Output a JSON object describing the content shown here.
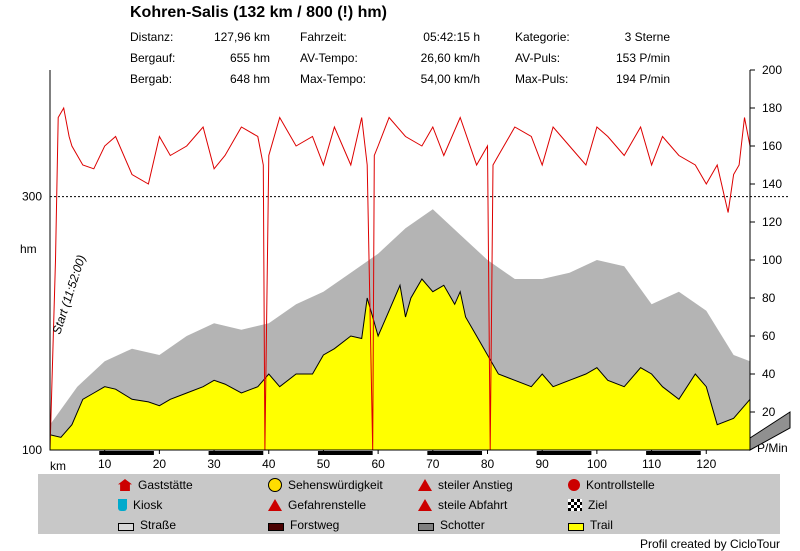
{
  "title": "Kohren-Salis (132 km / 800 (!) hm)",
  "stats": [
    {
      "label": "Distanz:",
      "value": "127,96 km"
    },
    {
      "label": "Bergauf:",
      "value": "655 hm"
    },
    {
      "label": "Bergab:",
      "value": "648 hm"
    },
    {
      "label": "Fahrzeit:",
      "value": "05:42:15 h"
    },
    {
      "label": "AV-Tempo:",
      "value": "26,60 km/h"
    },
    {
      "label": "Max-Tempo:",
      "value": "54,00 km/h"
    },
    {
      "label": "Kategorie:",
      "value": "3 Sterne"
    },
    {
      "label": "AV-Puls:",
      "value": "153 P/min"
    },
    {
      "label": "Max-Puls:",
      "value": "194 P/min"
    }
  ],
  "axis": {
    "left_unit": "hm",
    "right_unit": "P/Min",
    "x_unit": "km",
    "left_ticks": [
      "100",
      "300"
    ],
    "right_ticks": [
      "20",
      "40",
      "60",
      "80",
      "100",
      "120",
      "140",
      "160",
      "180",
      "200"
    ],
    "x_ticks": [
      "10",
      "20",
      "30",
      "40",
      "50",
      "60",
      "70",
      "80",
      "90",
      "100",
      "110",
      "120"
    ]
  },
  "start_label": "Start (11:52:00)",
  "legend": [
    {
      "label": "Gaststätte",
      "icon": "house-icon",
      "color": "#cc0000"
    },
    {
      "label": "Sehenswürdigkeit",
      "icon": "smiley-icon",
      "color": "#ffdd00"
    },
    {
      "label": "steiler Anstieg",
      "icon": "steep-climb-icon",
      "color": "#cc0000"
    },
    {
      "label": "Kontrollstelle",
      "icon": "stop-sign-icon",
      "color": "#cc0000"
    },
    {
      "label": "Kiosk",
      "icon": "cup-icon",
      "color": "#00aacc"
    },
    {
      "label": "Gefahrenstelle",
      "icon": "warning-icon",
      "color": "#cc0000"
    },
    {
      "label": "steile Abfahrt",
      "icon": "steep-descent-icon",
      "color": "#cc0000"
    },
    {
      "label": "Ziel",
      "icon": "checkered-flag-icon",
      "color": "#000000"
    },
    {
      "label": "Straße",
      "icon": "road-swatch-icon",
      "color": "#d8d8d8"
    },
    {
      "label": "Forstweg",
      "icon": "forest-path-swatch-icon",
      "color": "#4a0000"
    },
    {
      "label": "Schotter",
      "icon": "gravel-swatch-icon",
      "color": "#808080"
    },
    {
      "label": "Trail",
      "icon": "trail-swatch-icon",
      "color": "#ffff00"
    }
  ],
  "credit": "Profil created by CicloTour",
  "chart_data": {
    "type": "area",
    "x_range_km": [
      0,
      128
    ],
    "elevation_range_hm": [
      100,
      400
    ],
    "pulse_range": [
      0,
      200
    ],
    "reference_line_hm": 300,
    "elevation": {
      "x": [
        0,
        2,
        4,
        6,
        8,
        10,
        12,
        15,
        18,
        20,
        22,
        25,
        28,
        30,
        32,
        35,
        38,
        40,
        42,
        45,
        48,
        50,
        52,
        55,
        57,
        58,
        59,
        60,
        62,
        64,
        65,
        66,
        68,
        70,
        72,
        74,
        75,
        76,
        78,
        80,
        82,
        85,
        88,
        90,
        92,
        95,
        98,
        100,
        102,
        105,
        108,
        110,
        112,
        115,
        118,
        120,
        122,
        125,
        128
      ],
      "y": [
        112,
        110,
        120,
        140,
        145,
        150,
        148,
        140,
        138,
        135,
        140,
        145,
        150,
        155,
        152,
        145,
        150,
        160,
        150,
        160,
        160,
        175,
        180,
        190,
        188,
        220,
        205,
        190,
        210,
        230,
        205,
        220,
        235,
        225,
        230,
        215,
        225,
        205,
        190,
        175,
        160,
        155,
        150,
        160,
        150,
        155,
        160,
        165,
        155,
        150,
        165,
        160,
        150,
        140,
        160,
        150,
        120,
        125,
        140
      ]
    },
    "shadow": {
      "x": [
        0,
        5,
        10,
        15,
        20,
        25,
        30,
        35,
        40,
        45,
        50,
        55,
        60,
        65,
        70,
        75,
        80,
        85,
        90,
        95,
        100,
        105,
        110,
        115,
        120,
        125,
        128
      ],
      "y": [
        120,
        150,
        170,
        180,
        175,
        190,
        200,
        195,
        200,
        215,
        225,
        240,
        255,
        275,
        290,
        270,
        250,
        235,
        235,
        240,
        250,
        245,
        215,
        225,
        210,
        175,
        170
      ]
    },
    "pulse": {
      "x": [
        0,
        1,
        1.5,
        2.5,
        3.5,
        4,
        6,
        8,
        10,
        12,
        15,
        18,
        20,
        22,
        25,
        28,
        30,
        32,
        35,
        38,
        39,
        39.3,
        40,
        42,
        45,
        48,
        50,
        52,
        55,
        57,
        58,
        59,
        59.3,
        60,
        62,
        65,
        68,
        70,
        72,
        75,
        78,
        80,
        80.5,
        81,
        82,
        85,
        88,
        90,
        92,
        95,
        98,
        100,
        102,
        105,
        108,
        110,
        112,
        115,
        118,
        120,
        122,
        124,
        125,
        126,
        127,
        128
      ],
      "y": [
        0,
        100,
        175,
        180,
        165,
        160,
        150,
        148,
        160,
        165,
        145,
        140,
        165,
        155,
        160,
        170,
        148,
        155,
        170,
        165,
        150,
        0,
        155,
        175,
        160,
        165,
        150,
        170,
        150,
        175,
        150,
        0,
        155,
        160,
        175,
        165,
        160,
        170,
        155,
        175,
        150,
        160,
        0,
        150,
        155,
        170,
        165,
        150,
        170,
        160,
        150,
        170,
        165,
        155,
        170,
        150,
        165,
        155,
        150,
        140,
        150,
        125,
        145,
        150,
        175,
        160
      ]
    }
  }
}
